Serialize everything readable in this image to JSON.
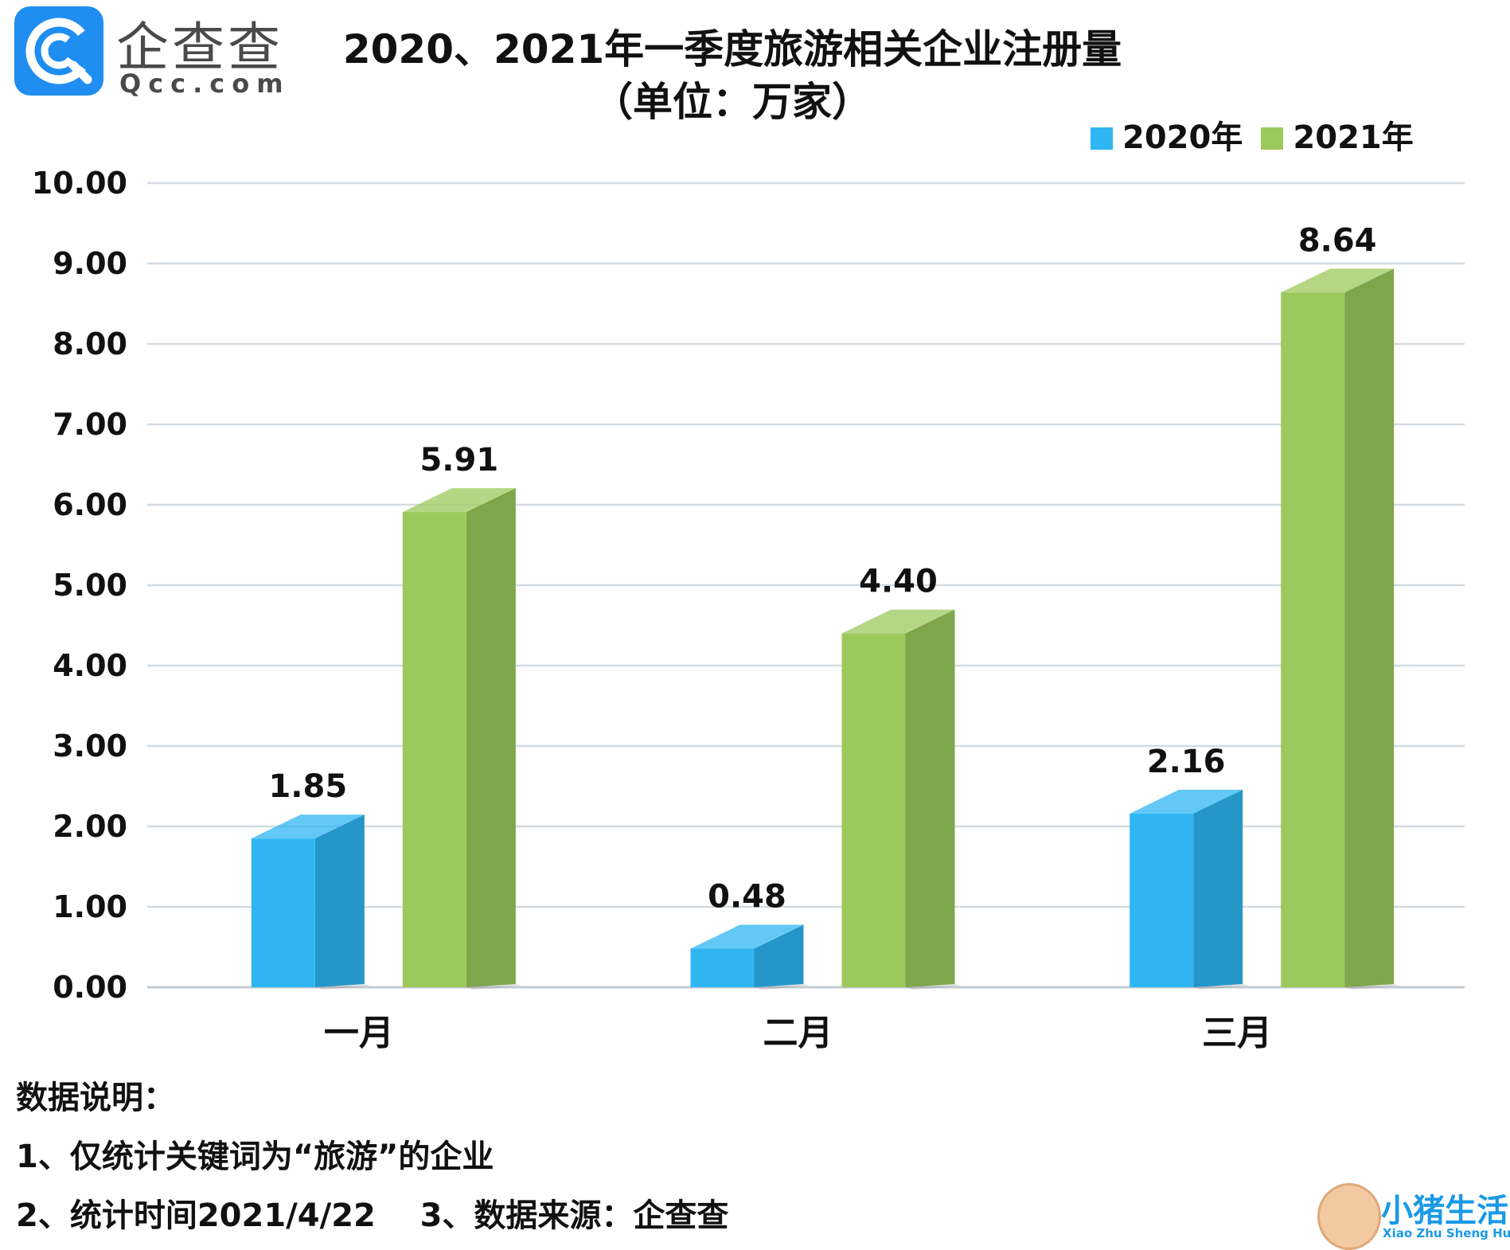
{
  "logo": {
    "name_cn": "企查查",
    "name_en": "Qcc.com"
  },
  "chart_data": {
    "type": "bar",
    "title": "2020、2021年一季度旅游相关企业注册量",
    "subtitle": "（单位：万家）",
    "categories": [
      "一月",
      "二月",
      "三月"
    ],
    "series": [
      {
        "name": "2020年",
        "values": [
          1.85,
          0.48,
          2.16
        ],
        "labels": [
          "1.85",
          "0.48",
          "2.16"
        ],
        "color": "#2fb6f2",
        "side_color": "#2496c8"
      },
      {
        "name": "2021年",
        "values": [
          5.91,
          4.4,
          8.64
        ],
        "labels": [
          "5.91",
          "4.40",
          "8.64"
        ],
        "color": "#9cc95c",
        "side_color": "#7ea64a"
      }
    ],
    "ylim": [
      0,
      10
    ],
    "yticks": [
      "0.00",
      "1.00",
      "2.00",
      "3.00",
      "4.00",
      "5.00",
      "6.00",
      "7.00",
      "8.00",
      "9.00",
      "10.00"
    ],
    "grid": true,
    "legend_position": "top-right",
    "bar_style": "3d"
  },
  "notes": {
    "heading": "数据说明：",
    "line1": "1、仅统计关键词为“旅游”的企业",
    "line2": "2、统计时间2021/4/22    3、数据来源：企查查"
  },
  "watermark": {
    "text": "小猪生活",
    "sub": "Xiao Zhu Sheng Huo"
  }
}
